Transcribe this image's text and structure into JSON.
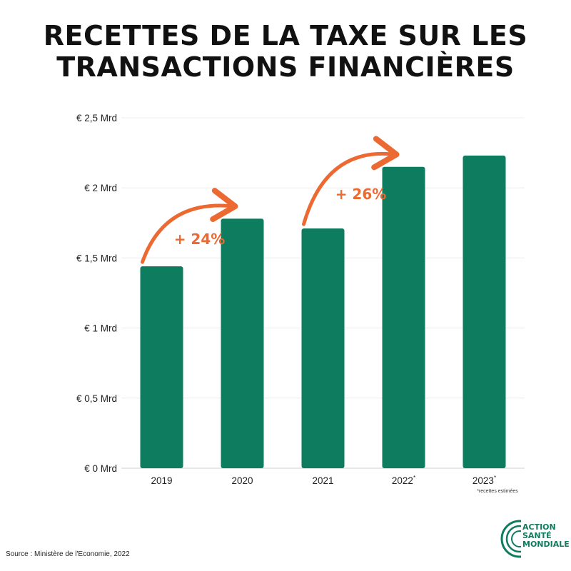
{
  "title_lines": [
    "RECETTES DE LA TAXE SUR LES",
    "TRANSACTIONS FINANCIÈRES"
  ],
  "chart_data": {
    "type": "bar",
    "categories": [
      "2019",
      "2020",
      "2021",
      "2022",
      "2023"
    ],
    "category_marks": [
      "",
      "",
      "",
      "*",
      "*"
    ],
    "values": [
      1.44,
      1.78,
      1.71,
      2.15,
      2.23
    ],
    "ylim": [
      0,
      2.5
    ],
    "yticks": [
      0,
      0.5,
      1,
      1.5,
      2,
      2.5
    ],
    "ytick_labels": [
      "€ 0 Mrd",
      "€ 0,5 Mrd",
      "€ 1 Mrd",
      "€ 1,5 Mrd",
      "€ 2 Mrd",
      "€ 2,5 Mrd"
    ],
    "bar_color": "#0e7c5e",
    "grid": true,
    "annotations": [
      {
        "from": "2019",
        "to": "2020",
        "label": "+ 24%"
      },
      {
        "from": "2021",
        "to": "2022",
        "label": "+ 26%"
      }
    ],
    "annotation_color": "#ec6a31",
    "footnote": "*recettes estimées"
  },
  "source": "Source : Ministère de l'Economie, 2022",
  "logo": {
    "lines": [
      "ACTION",
      "SANTÉ",
      "MONDIALE"
    ],
    "color": "#0e7c5e"
  }
}
